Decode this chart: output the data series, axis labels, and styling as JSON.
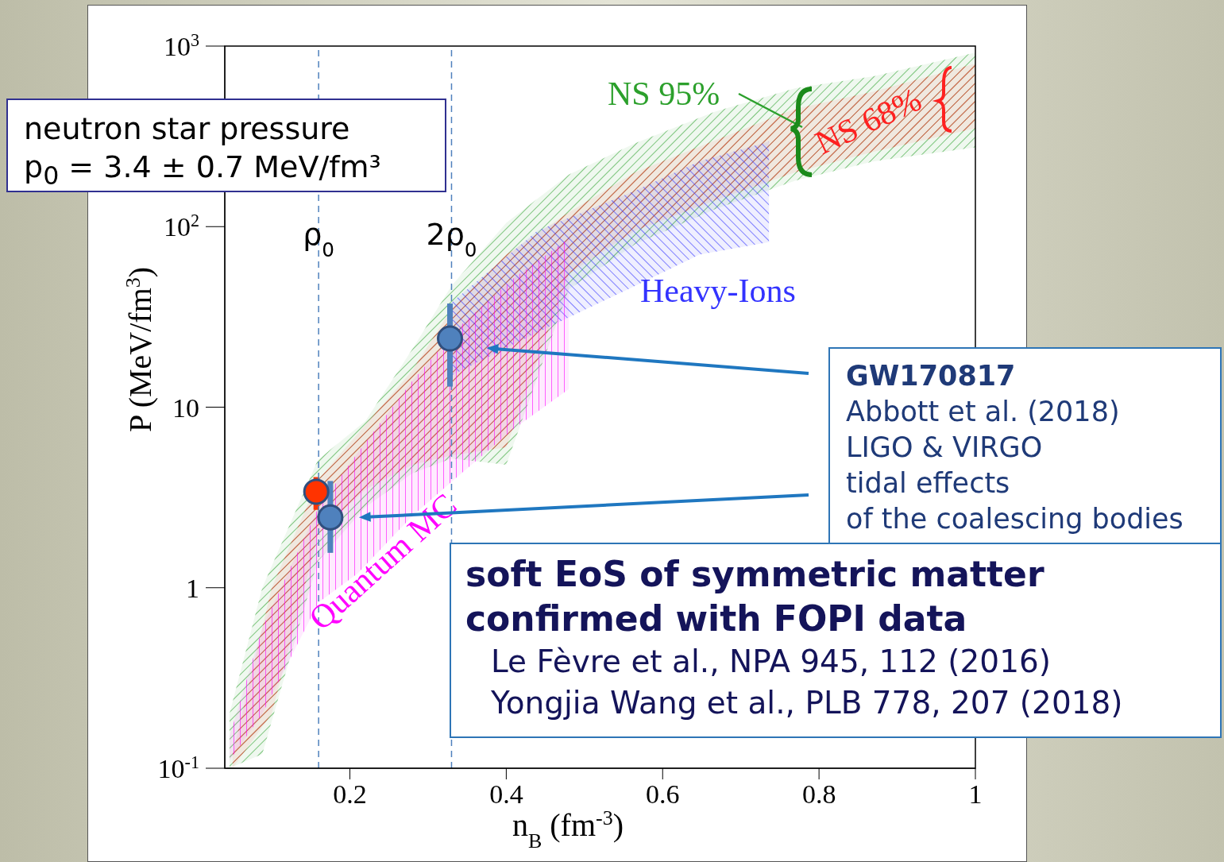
{
  "chart_data": {
    "type": "area",
    "xlabel": "n$_{B}$ (fm$^{-3}$)",
    "ylabel": "P (MeV/fm$^{3}$)",
    "xlim": [
      0.04,
      1
    ],
    "xticks": [
      0.2,
      0.4,
      0.6,
      0.8,
      1
    ],
    "ylim": [
      0.1,
      1000
    ],
    "yticks": [
      {
        "value": 0.1,
        "label": "10$^{-1}$"
      },
      {
        "value": 1,
        "label": "1"
      },
      {
        "value": 10,
        "label": "10"
      },
      {
        "value": 100,
        "label": "10$^{2}$"
      },
      {
        "value": 1000,
        "label": "10$^{3}$"
      }
    ],
    "log": "y",
    "grid": false,
    "legend": "top right",
    "marker": "circle",
    "series": [
      {
        "name": "NS 95%",
        "color": "#2ca02c",
        "x": [
          0.046,
          0.088,
          0.159,
          0.22,
          0.28,
          0.33,
          0.4,
          0.48,
          0.565,
          0.667,
          0.77,
          0.87,
          1.0
        ],
        "values": [
          null,
          null,
          null,
          null,
          null,
          null,
          null,
          null,
          null,
          null,
          null,
          null,
          null
        ],
        "lower": [
          0.1,
          0.12,
          1.4,
          2.8,
          4.3,
          5.2,
          4.8,
          45,
          80,
          125,
          180,
          230,
          275
        ],
        "upper": [
          0.2,
          1,
          5.1,
          8.4,
          21,
          47,
          105,
          194,
          290,
          434,
          585,
          680,
          920
        ]
      },
      {
        "name": "NS 68%",
        "color": "#ff2020",
        "x": [
          0.05,
          0.1,
          0.16,
          0.22,
          0.28,
          0.33,
          0.4,
          0.48,
          0.565,
          0.667,
          0.77,
          0.87,
          1.0
        ],
        "values": [
          null,
          null,
          null,
          null,
          null,
          null,
          null,
          null,
          null,
          null,
          null,
          null,
          null
        ],
        "lower": [
          0.1,
          0.2,
          2,
          3.5,
          4.8,
          5.4,
          6,
          55,
          95,
          140,
          200,
          260,
          350
        ],
        "upper": [
          0.12,
          1,
          4,
          8,
          16,
          35,
          70,
          120,
          200,
          300,
          450,
          560,
          800
        ]
      },
      {
        "name": "Heavy-Ions",
        "color": "#3333ff",
        "x": [
          0.33,
          0.44,
          0.565,
          0.647,
          0.736
        ],
        "values": [
          null,
          null,
          null,
          null,
          null
        ],
        "lower": [
          15,
          26,
          47,
          70,
          82
        ],
        "upper": [
          38,
          95,
          158,
          230,
          296
        ]
      },
      {
        "name": "Quantum MC",
        "color": "#ff00ff",
        "x": [
          0.046,
          0.088,
          0.16,
          0.21,
          0.28,
          0.34,
          0.41,
          0.48
        ],
        "values": [
          null,
          null,
          null,
          null,
          null,
          null,
          null,
          null
        ],
        "lower": [
          0.11,
          0.2,
          0.83,
          1.2,
          2.5,
          4.2,
          7.6,
          12.6
        ],
        "upper": [
          0.15,
          0.6,
          2.8,
          5.6,
          14,
          28,
          52,
          86
        ]
      },
      {
        "type": "scatter",
        "color": "#ff3300",
        "x": [
          0.157
        ],
        "values": [
          3.4
        ],
        "errors": [
          0.7
        ]
      },
      {
        "type": "scatter",
        "color": "#4f81bd",
        "x": [
          0.175,
          0.328
        ],
        "values": [
          2.45,
          24
        ],
        "errors": [
          [
            1.56,
            3.9
          ],
          [
            13,
            37.5
          ]
        ]
      }
    ],
    "ref_lines": [
      {
        "axis": "x",
        "value": 0.16,
        "label": "ρ$_{0}$",
        "color": "#4f81bd",
        "line_style": "dashed"
      },
      {
        "axis": "x",
        "value": 0.33,
        "label": "2ρ$_{0}$",
        "color": "#4f81bd",
        "line_style": "dashed"
      }
    ],
    "annotations": [
      "neutron star pressure",
      "p$_{0}$ = 3.4 ± 0.7 MeV/fm³",
      "GW170817",
      "Abbott et al. (2018)",
      "LIGO & VIRGO",
      "tidal effects",
      "of the coalescing bodies",
      "soft EoS of symmetric matter",
      "confirmed with FOPI data",
      "Le Fèvre et al., NPA 945, 112 (2016)",
      "Yongjia Wang et al., PLB 778, 207 (2018)"
    ]
  }
}
